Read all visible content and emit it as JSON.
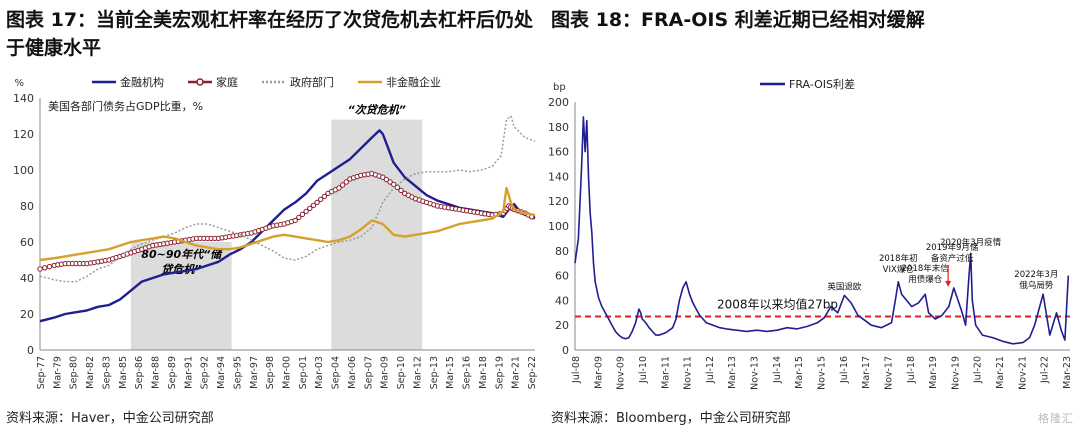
{
  "left": {
    "title": "图表 17：当前全美宏观杠杆率在经历了次贷危机去杠杆后仍处于健康水平",
    "source": "资料来源：Haver，中金公司研究部",
    "chart_data": {
      "type": "line",
      "y_unit": "%",
      "subtitle": "美国各部门债务占GDP比重，%",
      "ylim": [
        0,
        140
      ],
      "yticks": [
        0,
        20,
        40,
        60,
        80,
        100,
        120,
        140
      ],
      "xticks": [
        "Sep-77",
        "Mar-79",
        "Sep-80",
        "Mar-82",
        "Sep-83",
        "Mar-85",
        "Sep-86",
        "Mar-88",
        "Sep-89",
        "Mar-91",
        "Sep-92",
        "Mar-94",
        "Sep-95",
        "Mar-97",
        "Sep-98",
        "Mar-00",
        "Sep-01",
        "Mar-03",
        "Sep-04",
        "Mar-06",
        "Sep-07",
        "Mar-09",
        "Sep-10",
        "Mar-12",
        "Sep-13",
        "Mar-15",
        "Sep-16",
        "Mar-18",
        "Sep-19",
        "Mar-21",
        "Sep-22"
      ],
      "xlim": [
        1977.7,
        2022.9
      ],
      "shaded": [
        {
          "label": "80~90年代“储贷危机”",
          "from": 1986.0,
          "to": 1995.2,
          "ymax": 60
        },
        {
          "label": "“次贷危机”",
          "from": 2004.3,
          "to": 2012.6,
          "ymax": 128
        }
      ],
      "series": [
        {
          "name": "金融机构",
          "color": "#1f1f8f",
          "style": "solid",
          "x": [
            1977.7,
            1979,
            1980,
            1981,
            1982,
            1983,
            1984,
            1985,
            1986,
            1987,
            1988,
            1989,
            1990,
            1991,
            1992,
            1993,
            1994,
            1995,
            1996,
            1997,
            1998,
            1999,
            2000,
            2001,
            2002,
            2003,
            2004,
            2005,
            2006,
            2007,
            2008,
            2008.7,
            2009,
            2009.5,
            2010,
            2011,
            2012,
            2013,
            2014,
            2015,
            2016,
            2017,
            2018,
            2019,
            2020,
            2020.5,
            2021,
            2021.5,
            2022,
            2022.9
          ],
          "y": [
            16,
            18,
            20,
            21,
            22,
            24,
            25,
            28,
            33,
            38,
            40,
            42,
            43,
            44,
            45,
            47,
            49,
            53,
            56,
            60,
            66,
            72,
            78,
            82,
            87,
            94,
            98,
            102,
            106,
            112,
            118,
            122,
            120,
            112,
            104,
            96,
            91,
            86,
            83,
            81,
            79,
            78,
            77,
            76,
            74,
            78,
            81,
            77,
            75,
            74
          ]
        },
        {
          "name": "家庭",
          "color": "#8b1e2e",
          "style": "circles",
          "x": [
            1977.7,
            1979,
            1980,
            1981,
            1982,
            1983,
            1984,
            1985,
            1986,
            1987,
            1988,
            1989,
            1990,
            1991,
            1992,
            1993,
            1994,
            1995,
            1996,
            1997,
            1998,
            1999,
            2000,
            2001,
            2002,
            2003,
            2004,
            2005,
            2006,
            2007,
            2008,
            2009,
            2010,
            2011,
            2012,
            2013,
            2014,
            2015,
            2016,
            2017,
            2018,
            2019,
            2020,
            2020.5,
            2021,
            2022,
            2022.9
          ],
          "y": [
            45,
            47,
            48,
            48,
            48,
            49,
            50,
            52,
            54,
            56,
            58,
            59,
            60,
            61,
            62,
            62,
            62,
            63,
            64,
            65,
            67,
            69,
            70,
            72,
            77,
            82,
            87,
            90,
            95,
            97,
            98,
            96,
            92,
            87,
            84,
            82,
            80,
            79,
            78,
            77,
            76,
            75,
            76,
            80,
            78,
            76,
            73
          ]
        },
        {
          "name": "政府部门",
          "color": "#9a9a9a",
          "style": "dotted",
          "x": [
            1977.7,
            1979,
            1980,
            1981,
            1982,
            1983,
            1984,
            1985,
            1986,
            1987,
            1988,
            1989,
            1990,
            1991,
            1992,
            1993,
            1994,
            1995,
            1996,
            1997,
            1998,
            1999,
            2000,
            2001,
            2002,
            2003,
            2004,
            2005,
            2006,
            2007,
            2008,
            2009,
            2010,
            2011,
            2012,
            2013,
            2014,
            2015,
            2016,
            2017,
            2018,
            2019,
            2019.8,
            2020.3,
            2020.7,
            2021,
            2022,
            2022.9
          ],
          "y": [
            41,
            39,
            38,
            38,
            41,
            45,
            47,
            52,
            56,
            59,
            61,
            63,
            65,
            68,
            70,
            70,
            68,
            66,
            64,
            61,
            58,
            55,
            51,
            50,
            52,
            56,
            58,
            60,
            61,
            63,
            68,
            82,
            90,
            95,
            98,
            99,
            99,
            99,
            100,
            99,
            100,
            102,
            108,
            128,
            130,
            124,
            118,
            116
          ]
        },
        {
          "name": "非金融企业",
          "color": "#d4a12c",
          "style": "solid",
          "x": [
            1977.7,
            1979,
            1980,
            1981,
            1982,
            1983,
            1984,
            1985,
            1986,
            1987,
            1988,
            1989,
            1990,
            1991,
            1992,
            1993,
            1994,
            1995,
            1996,
            1997,
            1998,
            1999,
            2000,
            2001,
            2002,
            2003,
            2004,
            2005,
            2006,
            2007,
            2008,
            2009,
            2010,
            2011,
            2012,
            2013,
            2014,
            2015,
            2016,
            2017,
            2018,
            2019,
            2020,
            2020.3,
            2020.7,
            2021,
            2022,
            2022.9
          ],
          "y": [
            50,
            51,
            52,
            53,
            54,
            55,
            56,
            58,
            60,
            61,
            62,
            63,
            62,
            60,
            58,
            57,
            56,
            56,
            57,
            59,
            61,
            63,
            64,
            63,
            62,
            61,
            60,
            61,
            63,
            67,
            72,
            70,
            64,
            63,
            64,
            65,
            66,
            68,
            70,
            71,
            72,
            73,
            77,
            90,
            82,
            78,
            76,
            75
          ]
        }
      ]
    }
  },
  "right": {
    "title": "图表 18：FRA-OIS 利差近期已经相对缓解",
    "source": "资料来源：Bloomberg，中金公司研究部",
    "watermark": "格隆汇",
    "chart_data": {
      "type": "line",
      "y_unit": "bp",
      "ylim": [
        0,
        200
      ],
      "yticks": [
        0,
        20,
        40,
        60,
        80,
        100,
        120,
        140,
        160,
        180,
        200
      ],
      "xticks": [
        "Jul-08",
        "Mar-09",
        "Nov-09",
        "Jul-10",
        "Mar-11",
        "Nov-11",
        "Jul-12",
        "Mar-13",
        "Nov-13",
        "Jul-14",
        "Mar-15",
        "Nov-15",
        "Jul-16",
        "Mar-17",
        "Nov-17",
        "Jul-18",
        "Mar-19",
        "Nov-19",
        "Jul-20",
        "Mar-21",
        "Nov-21",
        "Jul-22",
        "Mar-23"
      ],
      "xlim": [
        2008.5,
        2023.2
      ],
      "mean_line": {
        "value": 27,
        "label": "2008年以来均值27bp",
        "color": "#e02020"
      },
      "annotations": [
        {
          "text": "英国退欧",
          "x": 2016.5,
          "y": 44
        },
        {
          "text": "2018年初\nVIX爆仓",
          "x": 2018.1,
          "y": 58
        },
        {
          "text": "2018年末信\n用债爆仓",
          "x": 2018.9,
          "y": 50
        },
        {
          "text": "2019年9月储\n备资产过低",
          "x": 2019.7,
          "y": 67,
          "arrow": true
        },
        {
          "text": "2020年3月疫情",
          "x": 2020.25,
          "y": 80
        },
        {
          "text": "2022年3月\n俄乌局势",
          "x": 2022.2,
          "y": 45
        }
      ],
      "series": [
        {
          "name": "FRA-OIS利差",
          "color": "#1f1f8f",
          "x": [
            2008.5,
            2008.6,
            2008.7,
            2008.75,
            2008.8,
            2008.85,
            2008.9,
            2008.95,
            2009.0,
            2009.05,
            2009.1,
            2009.2,
            2009.3,
            2009.4,
            2009.5,
            2009.6,
            2009.7,
            2009.8,
            2009.9,
            2010.0,
            2010.1,
            2010.2,
            2010.3,
            2010.4,
            2010.45,
            2010.5,
            2010.6,
            2010.7,
            2010.8,
            2010.9,
            2011.0,
            2011.2,
            2011.4,
            2011.5,
            2011.6,
            2011.7,
            2011.8,
            2011.9,
            2012.0,
            2012.1,
            2012.2,
            2012.3,
            2012.4,
            2012.6,
            2012.8,
            2013.0,
            2013.3,
            2013.6,
            2013.9,
            2014.2,
            2014.5,
            2014.8,
            2015.1,
            2015.4,
            2015.7,
            2015.9,
            2016.1,
            2016.3,
            2016.5,
            2016.7,
            2016.9,
            2017.1,
            2017.3,
            2017.6,
            2017.9,
            2018.0,
            2018.1,
            2018.2,
            2018.35,
            2018.5,
            2018.7,
            2018.9,
            2019.0,
            2019.2,
            2019.4,
            2019.6,
            2019.75,
            2019.9,
            2020.0,
            2020.1,
            2020.2,
            2020.25,
            2020.3,
            2020.4,
            2020.6,
            2020.9,
            2021.2,
            2021.5,
            2021.8,
            2022.0,
            2022.15,
            2022.25,
            2022.4,
            2022.6,
            2022.8,
            2022.95,
            2023.05,
            2023.15
          ],
          "y": [
            70,
            90,
            150,
            188,
            160,
            185,
            140,
            110,
            95,
            70,
            55,
            42,
            35,
            30,
            25,
            20,
            15,
            12,
            10,
            9,
            10,
            15,
            22,
            33,
            30,
            25,
            22,
            18,
            15,
            12,
            12,
            14,
            18,
            25,
            40,
            50,
            55,
            45,
            38,
            33,
            28,
            25,
            22,
            20,
            18,
            17,
            16,
            15,
            16,
            15,
            16,
            18,
            17,
            19,
            22,
            26,
            35,
            30,
            44,
            38,
            28,
            24,
            20,
            18,
            22,
            38,
            55,
            45,
            40,
            35,
            38,
            45,
            30,
            25,
            28,
            35,
            50,
            38,
            30,
            20,
            60,
            78,
            40,
            20,
            12,
            10,
            7,
            5,
            6,
            10,
            20,
            30,
            45,
            12,
            30,
            15,
            8,
            60
          ]
        }
      ]
    }
  }
}
